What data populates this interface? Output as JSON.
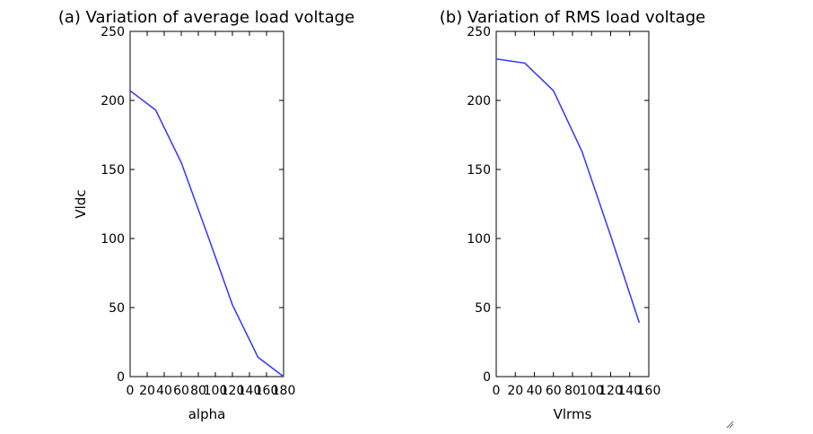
{
  "chart_data": [
    {
      "type": "line",
      "title": "(a) Variation of average load voltage",
      "xlabel": "alpha",
      "ylabel": "Vldc",
      "xlim": [
        0,
        180
      ],
      "ylim": [
        0,
        250
      ],
      "xticks": [
        "0",
        "20",
        "40",
        "60",
        "80",
        "100",
        "120",
        "140",
        "160",
        "180"
      ],
      "yticks": [
        "0",
        "50",
        "100",
        "150",
        "200",
        "250"
      ],
      "grid": false,
      "color": "#3333ff",
      "x": [
        0,
        30,
        60,
        90,
        120,
        150,
        180
      ],
      "y": [
        207,
        193,
        155,
        104,
        52,
        14,
        0
      ]
    },
    {
      "type": "line",
      "title": "(b) Variation of RMS load voltage",
      "xlabel": "Vlrms",
      "ylabel": "",
      "xlim": [
        0,
        160
      ],
      "ylim": [
        0,
        250
      ],
      "xticks": [
        "0",
        "20",
        "40",
        "60",
        "80",
        "100",
        "120",
        "140",
        "160"
      ],
      "yticks": [
        "0",
        "50",
        "100",
        "150",
        "200",
        "250"
      ],
      "grid": false,
      "color": "#3333ff",
      "x": [
        0,
        30,
        60,
        90,
        120,
        150
      ],
      "y": [
        230,
        227,
        207,
        163,
        102,
        39
      ]
    }
  ]
}
